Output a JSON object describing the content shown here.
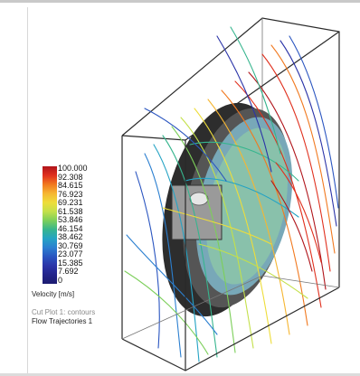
{
  "legend": {
    "title": "Velocity [m/s]",
    "ticks": [
      "100.000",
      "92.308",
      "84.615",
      "76.923",
      "69.231",
      "61.538",
      "53.846",
      "46.154",
      "38.462",
      "30.769",
      "23.077",
      "15.385",
      "7.692",
      "0"
    ],
    "colors": [
      "#b0141a",
      "#e0301e",
      "#f1791f",
      "#f6b632",
      "#eedd3a",
      "#c4e04a",
      "#7ccf5a",
      "#36b58e",
      "#24a3c4",
      "#2b7fd0",
      "#2a55c0",
      "#2b34a8",
      "#23248a",
      "#1c1c70"
    ]
  },
  "plots": {
    "cut_plot": "Cut Plot 1: contours",
    "flow_trajectories": "Flow Trajectories 1"
  }
}
